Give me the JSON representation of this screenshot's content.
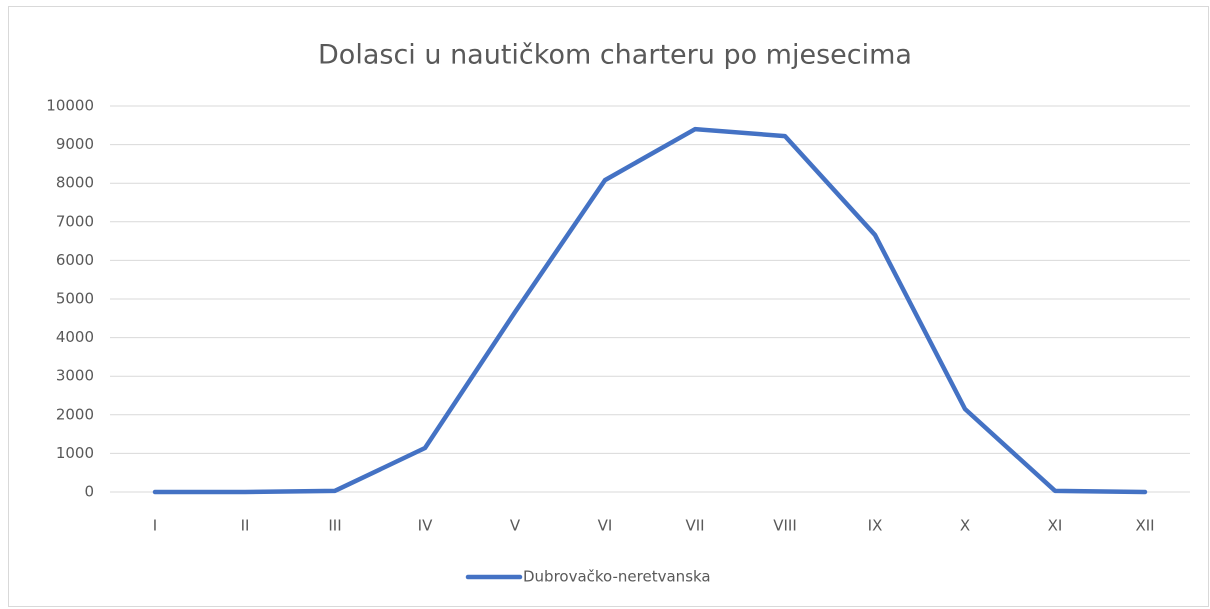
{
  "chart_data": {
    "type": "line",
    "title": "Dolasci u nautičkom charteru po mjesecima",
    "categories": [
      "I",
      "II",
      "III",
      "IV",
      "V",
      "VI",
      "VII",
      "VIII",
      "IX",
      "X",
      "XI",
      "XII"
    ],
    "series": [
      {
        "name": "Dubrovačko-neretvanska",
        "color": "#4472c4",
        "values": [
          0,
          0,
          30,
          1140,
          4660,
          8080,
          9400,
          9220,
          6660,
          2150,
          30,
          0
        ]
      }
    ],
    "ylim": [
      0,
      10000
    ],
    "yticks": [
      0,
      1000,
      2000,
      3000,
      4000,
      5000,
      6000,
      7000,
      8000,
      9000,
      10000
    ],
    "grid": true,
    "legend": "bottom"
  }
}
